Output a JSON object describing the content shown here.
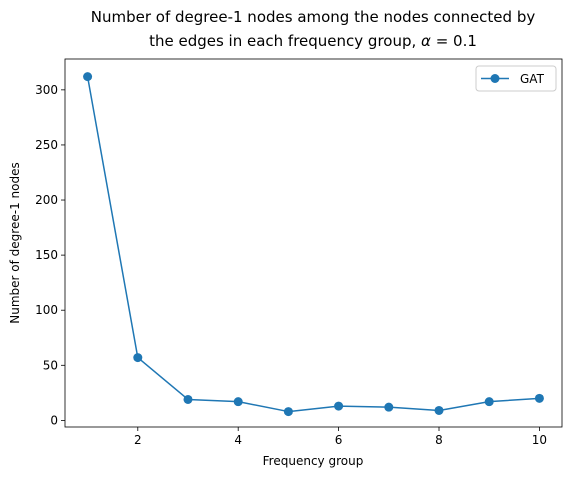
{
  "chart_data": {
    "type": "line",
    "title_line1": "Number of degree-1 nodes among the nodes connected by",
    "title_line2_prefix": "the edges in each frequency group, ",
    "title_alpha": "α",
    "title_line2_suffix": " = 0.1",
    "xlabel": "Frequency group",
    "ylabel": "Number of degree-1 nodes",
    "xlim": [
      0.55,
      10.45
    ],
    "ylim": [
      -6,
      328
    ],
    "xticks": [
      2,
      4,
      6,
      8,
      10
    ],
    "yticks": [
      0,
      50,
      100,
      150,
      200,
      250,
      300
    ],
    "grid": false,
    "legend_position": "top-right",
    "series": [
      {
        "name": "GAT",
        "color": "#1f77b4",
        "marker": "circle",
        "x": [
          1,
          2,
          3,
          4,
          5,
          6,
          7,
          8,
          9,
          10
        ],
        "y": [
          312,
          57,
          19,
          17,
          8,
          13,
          12,
          9,
          17,
          20
        ]
      }
    ]
  }
}
